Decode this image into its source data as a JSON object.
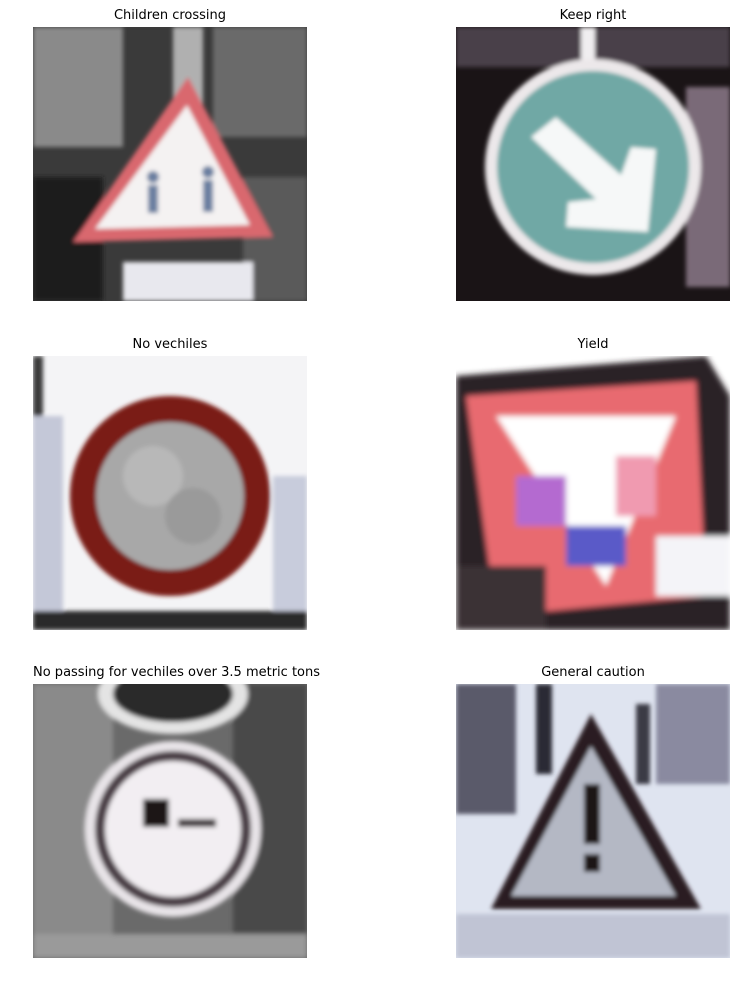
{
  "panels": [
    {
      "id": "p1",
      "title": "Children crossing",
      "sign_icon": "warning-triangle-children"
    },
    {
      "id": "p2",
      "title": "Keep right",
      "sign_icon": "mandatory-circle-arrow"
    },
    {
      "id": "p3",
      "title": "No vechiles",
      "sign_icon": "prohibition-circle"
    },
    {
      "id": "p4",
      "title": "Yield",
      "sign_icon": "yield-triangle"
    },
    {
      "id": "p5",
      "title": "No passing for vechiles over 3.5 metric tons",
      "sign_icon": "prohibition-circle-truck"
    },
    {
      "id": "p6",
      "title": "General caution",
      "sign_icon": "warning-triangle-exclamation"
    }
  ],
  "colors": {
    "background": "#ffffff",
    "warning_red": "#d9676e",
    "keep_right_teal": "#6fa8a5",
    "prohibition_red": "#7a1a14"
  }
}
